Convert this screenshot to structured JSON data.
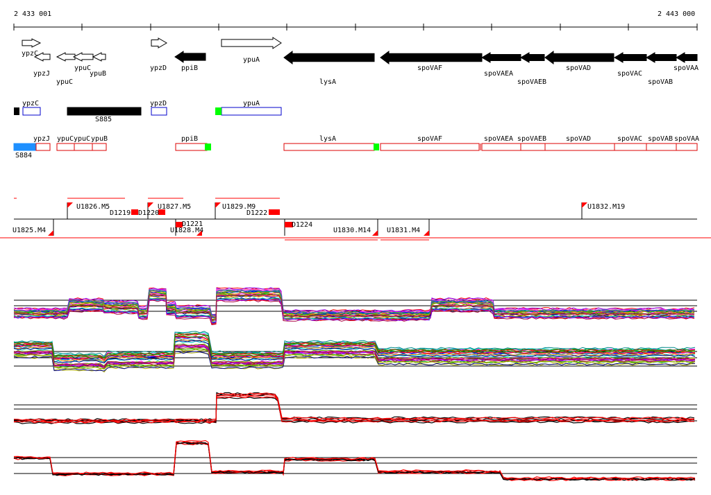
{
  "axis": {
    "start_label": "2 433 001",
    "end_label": "2 443 000"
  },
  "genes": [
    {
      "label": "ypzC",
      "style": "open",
      "strand": "+"
    },
    {
      "label": "ypzJ",
      "style": "open",
      "strand": "-"
    },
    {
      "label": "ypuC",
      "style": "open",
      "strand": "-"
    },
    {
      "label": "ypuC",
      "style": "open",
      "strand": "-"
    },
    {
      "label": "ypuB",
      "style": "open",
      "strand": "-"
    },
    {
      "label": "ypzD",
      "style": "open",
      "strand": "+"
    },
    {
      "label": "ppiB",
      "style": "filled",
      "strand": "-"
    },
    {
      "label": "ypuA",
      "style": "open",
      "strand": "+"
    },
    {
      "label": "lysA",
      "style": "filled",
      "strand": "-"
    },
    {
      "label": "spoVAF",
      "style": "filled",
      "strand": "-"
    },
    {
      "label": "spoVAEA",
      "style": "filled",
      "strand": "-"
    },
    {
      "label": "spoVAEB",
      "style": "filled",
      "strand": "-"
    },
    {
      "label": "spoVAD",
      "style": "filled",
      "strand": "-"
    },
    {
      "label": "spoVAC",
      "style": "filled",
      "strand": "-"
    },
    {
      "label": "spoVAB",
      "style": "filled",
      "strand": "-"
    },
    {
      "label": "spoVAA",
      "style": "filled",
      "strand": "-"
    }
  ],
  "plus_features": [
    {
      "label": "ypzC",
      "color": "#0000cc"
    },
    {
      "label": "S885",
      "color": "#000000"
    },
    {
      "label": "ypzD",
      "color": "#0000cc"
    },
    {
      "label": "ypuA",
      "color": "#0000cc"
    }
  ],
  "minus_features": [
    {
      "label": "S884",
      "color": "#1e90ff"
    },
    {
      "label": "ypzJ",
      "color": "#dd0000"
    },
    {
      "label": "ypuC",
      "color": "#dd0000"
    },
    {
      "label": "ypuC",
      "color": "#dd0000"
    },
    {
      "label": "ypuB",
      "color": "#dd0000"
    },
    {
      "label": "ppiB",
      "color": "#dd0000"
    },
    {
      "label": "lysA",
      "color": "#dd0000"
    },
    {
      "label": "spoVAF",
      "color": "#dd0000"
    },
    {
      "label": "spoVAEA",
      "color": "#dd0000"
    },
    {
      "label": "spoVAEB",
      "color": "#dd0000"
    },
    {
      "label": "spoVAD",
      "color": "#dd0000"
    },
    {
      "label": "spoVAC",
      "color": "#dd0000"
    },
    {
      "label": "spoVAB",
      "color": "#dd0000"
    },
    {
      "label": "spoVAA",
      "color": "#dd0000"
    }
  ],
  "upshifts": [
    "U1826.M5",
    "U1827.M5",
    "U1829.M9",
    "U1832.M19"
  ],
  "downshifts": [
    "U1825.M4",
    "U1828.M4",
    "U1830.M14",
    "U1831.M4"
  ],
  "deletions": [
    "D1219",
    "D1220",
    "D1221",
    "D1222",
    "D1224"
  ],
  "colors": {
    "gene_fill": "#000000",
    "feature_red": "#dd0000",
    "feature_blue": "#0000cc",
    "segment_red": "#ff0000",
    "green_marker": "#00ff00",
    "s884_blue": "#1e90ff"
  },
  "panels": [
    {
      "name": "expression-profiles-plus-strand",
      "series_colors": "multicolor"
    },
    {
      "name": "expression-profiles-minus-strand",
      "series_colors": "multicolor"
    },
    {
      "name": "summary-profiles-plus-strand",
      "series_colors": [
        "#000000",
        "#ff0000"
      ]
    },
    {
      "name": "summary-profiles-minus-strand",
      "series_colors": [
        "#000000",
        "#ff0000"
      ]
    }
  ]
}
